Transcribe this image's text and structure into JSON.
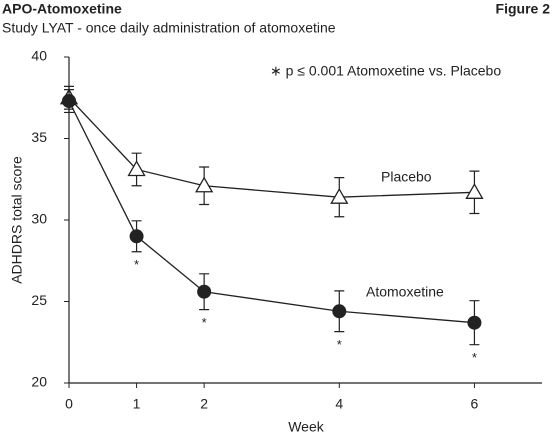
{
  "chart_data": {
    "type": "line",
    "header": "APO-Atomoxetine",
    "figure_label": "Figure 2",
    "title": "Study LYAT - once daily administration of atomoxetine",
    "note": "∗ p ≤ 0.001 Atomoxetine vs. Placebo",
    "x_label": "Week",
    "y_label": "ADHDRS total score",
    "xlim": [
      0,
      7
    ],
    "xticks": [
      0,
      1,
      2,
      4,
      6
    ],
    "ylim": [
      20,
      40
    ],
    "yticks": [
      20,
      25,
      30,
      35,
      40
    ],
    "series": [
      {
        "name": "Placebo",
        "marker": "triangle",
        "color": "#222",
        "x": [
          0,
          1,
          2,
          4,
          6
        ],
        "values": [
          37.5,
          33.1,
          32.1,
          31.4,
          31.7
        ],
        "errors": [
          0.7,
          1.0,
          1.15,
          1.2,
          1.3
        ]
      },
      {
        "name": "Atomoxetine",
        "marker": "circle",
        "color": "#222",
        "x": [
          0,
          1,
          2,
          4,
          6
        ],
        "values": [
          37.3,
          29.0,
          25.6,
          24.4,
          23.7
        ],
        "errors": [
          0.7,
          0.95,
          1.1,
          1.25,
          1.35
        ]
      }
    ],
    "significance": {
      "text": "*",
      "x": [
        1,
        2,
        4,
        6
      ]
    }
  }
}
